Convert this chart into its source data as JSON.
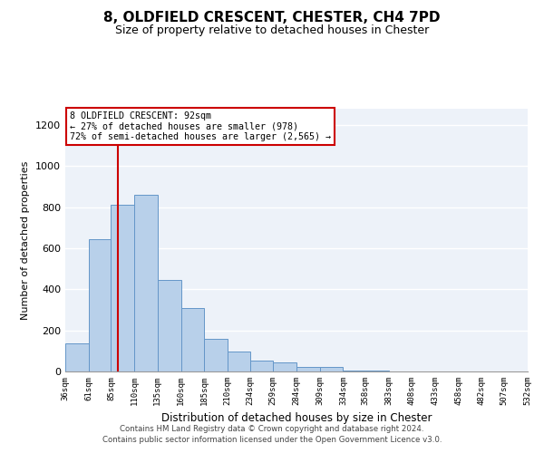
{
  "title": "8, OLDFIELD CRESCENT, CHESTER, CH4 7PD",
  "subtitle": "Size of property relative to detached houses in Chester",
  "xlabel": "Distribution of detached houses by size in Chester",
  "ylabel": "Number of detached properties",
  "bar_color": "#b8d0ea",
  "bar_edge_color": "#6496c8",
  "bins": [
    36,
    61,
    85,
    110,
    135,
    160,
    185,
    210,
    234,
    259,
    284,
    309,
    334,
    358,
    383,
    408,
    433,
    458,
    482,
    507,
    532
  ],
  "bar_heights": [
    135,
    645,
    810,
    860,
    445,
    310,
    158,
    95,
    52,
    42,
    20,
    20,
    5,
    5,
    2,
    0,
    0,
    2,
    0,
    0
  ],
  "tick_labels": [
    "36sqm",
    "61sqm",
    "85sqm",
    "110sqm",
    "135sqm",
    "160sqm",
    "185sqm",
    "210sqm",
    "234sqm",
    "259sqm",
    "284sqm",
    "309sqm",
    "334sqm",
    "358sqm",
    "383sqm",
    "408sqm",
    "433sqm",
    "458sqm",
    "482sqm",
    "507sqm",
    "532sqm"
  ],
  "ylim": [
    0,
    1280
  ],
  "yticks": [
    0,
    200,
    400,
    600,
    800,
    1000,
    1200
  ],
  "vline_x": 92,
  "vline_color": "#cc0000",
  "annotation_line1": "8 OLDFIELD CRESCENT: 92sqm",
  "annotation_line2": "← 27% of detached houses are smaller (978)",
  "annotation_line3": "72% of semi-detached houses are larger (2,565) →",
  "footnote1": "Contains HM Land Registry data © Crown copyright and database right 2024.",
  "footnote2": "Contains public sector information licensed under the Open Government Licence v3.0.",
  "background_color": "#edf2f9",
  "grid_color": "#ffffff",
  "fig_bg_color": "#ffffff"
}
